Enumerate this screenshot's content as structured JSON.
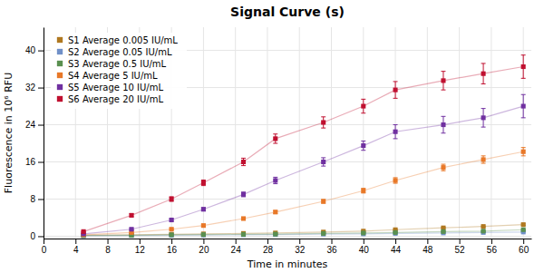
{
  "chart_data": {
    "type": "line",
    "title": "Signal Curve (s)",
    "x_label": "Time in minutes",
    "y_label": "Fluorescence in 10⁶ RFU",
    "x": [
      5,
      11,
      16,
      20,
      25,
      29,
      35,
      40,
      44,
      50,
      55,
      60
    ],
    "xlim": [
      0,
      61
    ],
    "xticks": [
      0,
      4,
      8,
      12,
      16,
      20,
      24,
      28,
      32,
      36,
      40,
      44,
      48,
      52,
      56,
      60
    ],
    "ylim": [
      -0.5,
      45
    ],
    "yticks": [
      0,
      8,
      16,
      24,
      32,
      40
    ],
    "grid": true,
    "legend": "upper left",
    "marker": "square",
    "line_style": "solid",
    "series": [
      {
        "name": "S1 Average 0.005 IU/mL",
        "color": "#b07820",
        "values": [
          0.2,
          0.3,
          0.4,
          0.5,
          0.6,
          0.7,
          0.9,
          1.1,
          1.4,
          1.8,
          2.1,
          2.5
        ],
        "errors": [
          0.05,
          0.05,
          0.05,
          0.05,
          0.05,
          0.05,
          0.05,
          0.08,
          0.08,
          0.1,
          0.1,
          0.15
        ]
      },
      {
        "name": "S2 Average 0.05 IU/mL",
        "color": "#7090c8",
        "values": [
          0.1,
          0.15,
          0.2,
          0.25,
          0.3,
          0.35,
          0.45,
          0.5,
          0.6,
          0.7,
          0.8,
          0.9
        ],
        "errors": [
          0.03,
          0.03,
          0.03,
          0.03,
          0.03,
          0.03,
          0.03,
          0.03,
          0.03,
          0.04,
          0.04,
          0.04
        ]
      },
      {
        "name": "S3 Average 0.5 IU/mL",
        "color": "#5a9050",
        "values": [
          0.15,
          0.2,
          0.3,
          0.35,
          0.4,
          0.45,
          0.6,
          0.7,
          0.8,
          1.0,
          1.1,
          1.4
        ],
        "errors": [
          0.03,
          0.03,
          0.03,
          0.03,
          0.03,
          0.03,
          0.03,
          0.03,
          0.03,
          0.04,
          0.04,
          0.04
        ]
      },
      {
        "name": "S4 Average 5 IU/mL",
        "color": "#e87828",
        "values": [
          0.3,
          0.8,
          1.5,
          2.3,
          3.8,
          5.2,
          7.5,
          9.8,
          12.0,
          14.8,
          16.5,
          18.2
        ],
        "errors": [
          0.05,
          0.1,
          0.15,
          0.2,
          0.25,
          0.3,
          0.4,
          0.5,
          0.6,
          0.7,
          0.8,
          0.9
        ]
      },
      {
        "name": "S5 Average 10 IU/mL",
        "color": "#7030a0",
        "values": [
          0.5,
          1.5,
          3.5,
          5.8,
          9.0,
          12.0,
          16.0,
          19.5,
          22.5,
          24.0,
          25.5,
          28.0
        ],
        "errors": [
          0.08,
          0.15,
          0.25,
          0.35,
          0.5,
          0.7,
          0.9,
          1.0,
          1.5,
          1.8,
          2.0,
          2.5
        ]
      },
      {
        "name": "S6 Average 20 IU/mL",
        "color": "#c01030",
        "values": [
          1.0,
          4.5,
          8.0,
          11.5,
          16.0,
          21.0,
          24.5,
          28.0,
          31.5,
          33.5,
          35.0,
          36.5
        ],
        "errors": [
          0.1,
          0.3,
          0.5,
          0.6,
          0.8,
          1.0,
          1.2,
          1.5,
          1.8,
          2.0,
          2.2,
          2.5
        ]
      }
    ]
  }
}
